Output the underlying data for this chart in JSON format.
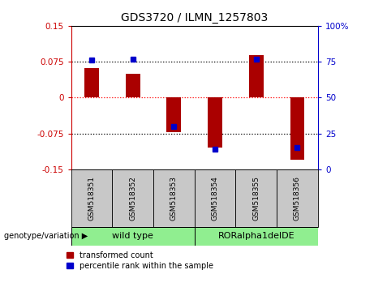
{
  "title": "GDS3720 / ILMN_1257803",
  "samples": [
    "GSM518351",
    "GSM518352",
    "GSM518353",
    "GSM518354",
    "GSM518355",
    "GSM518356"
  ],
  "transformed_count": [
    0.062,
    0.05,
    -0.072,
    -0.105,
    0.088,
    -0.13
  ],
  "percentile_rank": [
    76,
    77,
    30,
    14,
    77,
    15
  ],
  "ylim_left": [
    -0.15,
    0.15
  ],
  "ylim_right": [
    0,
    100
  ],
  "yticks_left": [
    -0.15,
    -0.075,
    0,
    0.075,
    0.15
  ],
  "yticks_right": [
    0,
    25,
    50,
    75,
    100
  ],
  "ytick_labels_left": [
    "-0.15",
    "-0.075",
    "0",
    "0.075",
    "0.15"
  ],
  "ytick_labels_right": [
    "0",
    "25",
    "50",
    "75",
    "100%"
  ],
  "groups": [
    {
      "label": "wild type",
      "start": 0,
      "end": 2
    },
    {
      "label": "RORalpha1delDE",
      "start": 3,
      "end": 5
    }
  ],
  "bar_color": "#AA0000",
  "dot_color": "#0000CC",
  "bar_width": 0.35,
  "legend_items": [
    {
      "color": "#AA0000",
      "label": "transformed count"
    },
    {
      "color": "#0000CC",
      "label": "percentile rank within the sample"
    }
  ],
  "group_label": "genotype/variation",
  "group_bg_color": "#90EE90",
  "sample_bg_color": "#C8C8C8",
  "left_axis_color": "#CC0000",
  "right_axis_color": "#0000CC",
  "background_color": "#ffffff"
}
